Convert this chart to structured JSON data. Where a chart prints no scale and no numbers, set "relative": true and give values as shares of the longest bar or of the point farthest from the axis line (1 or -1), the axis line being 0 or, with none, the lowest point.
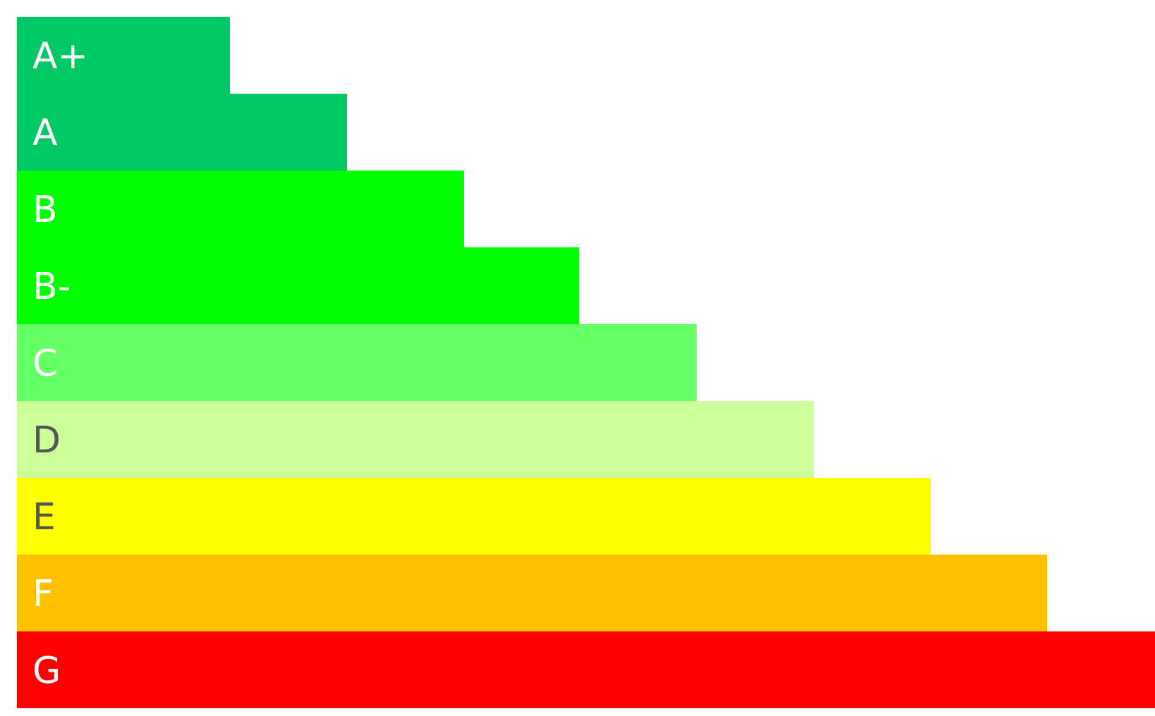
{
  "chart_data": {
    "type": "bar",
    "orientation": "horizontal",
    "relative": true,
    "categories": [
      "A+",
      "A",
      "B",
      "B-",
      "C",
      "D",
      "E",
      "F",
      "G"
    ],
    "values": [
      0.187,
      0.29,
      0.393,
      0.494,
      0.597,
      0.7,
      0.803,
      0.905,
      1
    ],
    "colors": [
      "#00c864",
      "#00c864",
      "#00ff00",
      "#00ff00",
      "#66ff66",
      "#ccff99",
      "#ffff00",
      "#ffc000",
      "#ff0000"
    ]
  }
}
